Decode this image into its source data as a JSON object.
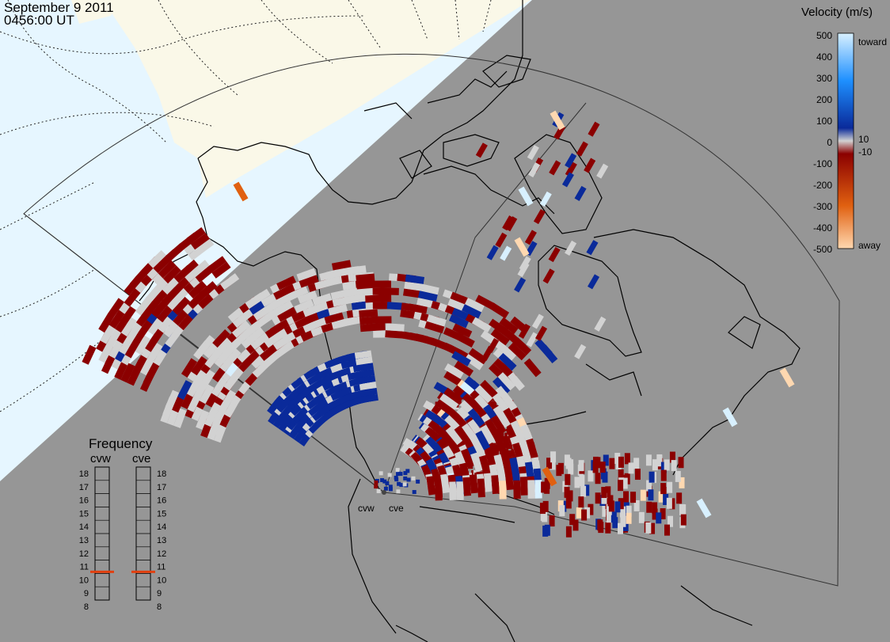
{
  "header": {
    "date": "September  9 2011",
    "time": "0456:00 UT"
  },
  "velocity_scale": {
    "title": "Velocity (m/s)",
    "ticks": [
      "500",
      "400",
      "300",
      "200",
      "100",
      "10",
      "0",
      "-10",
      "-100",
      "-200",
      "-300",
      "-400",
      "-500"
    ],
    "toward_label": "toward",
    "away_label": "away",
    "colors": {
      "toward_light": "#d8f0ff",
      "toward_mid": "#1e90ff",
      "toward_dark": "#0a2a9a",
      "near_zero": "#d2d2d2",
      "away_dark": "#8b0000",
      "away_mid": "#e06010",
      "away_light": "#ffd8b0"
    }
  },
  "frequency_panel": {
    "title": "Frequency",
    "radars": [
      "cvw",
      "cve"
    ],
    "scale": [
      "18",
      "17",
      "16",
      "15",
      "14",
      "13",
      "12",
      "11",
      "10",
      "9",
      "8"
    ],
    "cvw_mhz": 10.6,
    "cve_mhz": 10.6,
    "marker_color": "#e04010"
  },
  "radars": [
    {
      "code": "cvw",
      "label": "cvw"
    },
    {
      "code": "cve",
      "label": "cve"
    }
  ],
  "map_colors": {
    "night": "#969696",
    "day_ocean": "#e6f6ff",
    "day_land": "#faf8e8",
    "coast": "#000000",
    "fov": "#333333"
  }
}
